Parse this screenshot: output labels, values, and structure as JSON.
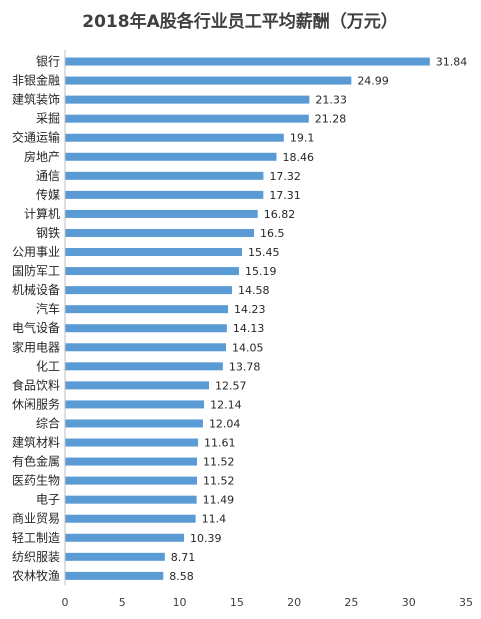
{
  "chart_data": {
    "type": "bar",
    "orientation": "horizontal",
    "title": "2018年A股各行业员工平均薪酬（万元）",
    "categories": [
      "银行",
      "非银金融",
      "建筑装饰",
      "采掘",
      "交通运输",
      "房地产",
      "通信",
      "传媒",
      "计算机",
      "钢铁",
      "公用事业",
      "国防军工",
      "机械设备",
      "汽车",
      "电气设备",
      "家用电器",
      "化工",
      "食品饮料",
      "休闲服务",
      "综合",
      "建筑材料",
      "有色金属",
      "医药生物",
      "电子",
      "商业贸易",
      "轻工制造",
      "纺织服装",
      "农林牧渔"
    ],
    "values": [
      31.84,
      24.99,
      21.33,
      21.28,
      19.1,
      18.46,
      17.32,
      17.31,
      16.82,
      16.5,
      15.45,
      15.19,
      14.58,
      14.23,
      14.13,
      14.05,
      13.78,
      12.57,
      12.14,
      12.04,
      11.61,
      11.52,
      11.52,
      11.49,
      11.4,
      10.39,
      8.71,
      8.58
    ],
    "value_labels": [
      "31.84",
      "24.99",
      "21.33",
      "21.28",
      "19.1",
      "18.46",
      "17.32",
      "17.31",
      "16.82",
      "16.5",
      "15.45",
      "15.19",
      "14.58",
      "14.23",
      "14.13",
      "14.05",
      "13.78",
      "12.57",
      "12.14",
      "12.04",
      "11.61",
      "11.52",
      "11.52",
      "11.49",
      "11.4",
      "10.39",
      "8.71",
      "8.58"
    ],
    "xlim": [
      0,
      35
    ],
    "x_ticks": [
      0,
      5,
      10,
      15,
      20,
      25,
      30,
      35
    ],
    "x_tick_labels": [
      "0",
      "5",
      "10",
      "15",
      "20",
      "25",
      "30",
      "35"
    ],
    "grid": false,
    "legend": "none",
    "bar_color": "#5b9bd5"
  }
}
